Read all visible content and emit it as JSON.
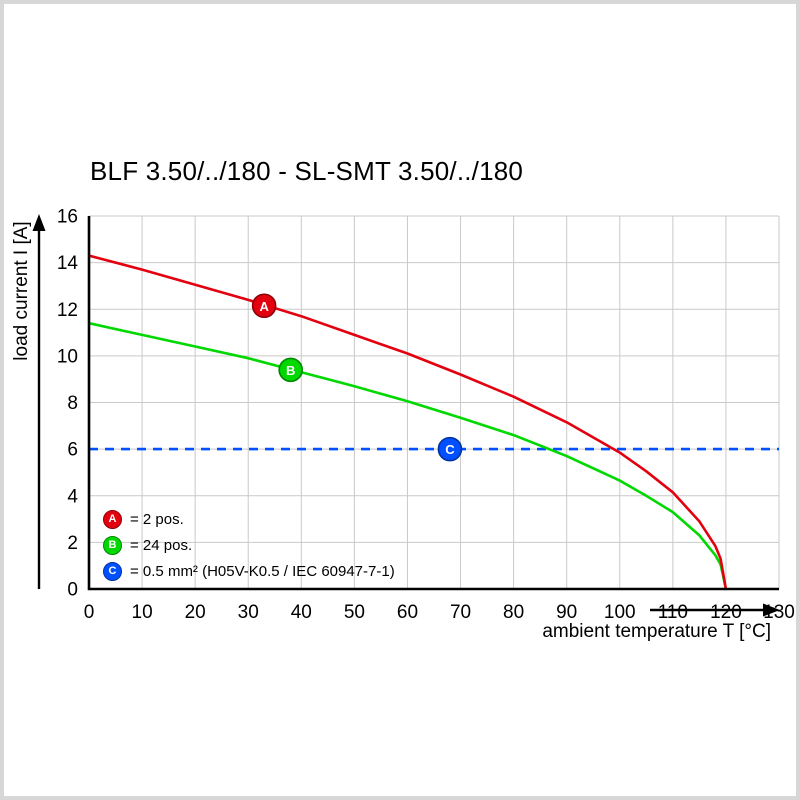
{
  "chart_data": {
    "type": "line",
    "title": "BLF 3.50/../180 - SL-SMT 3.50/../180",
    "xlabel": "ambient temperature T [°C]",
    "ylabel": "load current I [A]",
    "xlim": [
      0,
      130
    ],
    "ylim": [
      0,
      16
    ],
    "x_ticks": [
      0,
      10,
      20,
      30,
      40,
      50,
      60,
      70,
      80,
      90,
      100,
      110,
      120,
      130
    ],
    "y_ticks": [
      0,
      2,
      4,
      6,
      8,
      10,
      12,
      14,
      16
    ],
    "grid": true,
    "legend_position": "bottom-left-inside",
    "series": [
      {
        "name": "A",
        "legend_label": "= 2 pos.",
        "color": "#e3000f",
        "line_style": "solid",
        "x": [
          0,
          10,
          20,
          30,
          40,
          50,
          60,
          70,
          80,
          90,
          100,
          105,
          110,
          115,
          118,
          119,
          120
        ],
        "y": [
          14.3,
          13.7,
          13.05,
          12.4,
          11.7,
          10.9,
          10.1,
          9.2,
          8.25,
          7.15,
          5.85,
          5.05,
          4.15,
          2.9,
          1.85,
          1.3,
          0
        ],
        "marker": {
          "x": 33,
          "y": 12.15,
          "label": "A"
        }
      },
      {
        "name": "B",
        "legend_label": "= 24 pos.",
        "color": "#00d800",
        "line_style": "solid",
        "x": [
          0,
          10,
          20,
          30,
          40,
          50,
          60,
          70,
          80,
          90,
          100,
          105,
          110,
          115,
          118,
          119,
          120
        ],
        "y": [
          11.4,
          10.9,
          10.4,
          9.9,
          9.3,
          8.7,
          8.05,
          7.35,
          6.6,
          5.7,
          4.65,
          4.0,
          3.3,
          2.3,
          1.45,
          1.05,
          0
        ],
        "marker": {
          "x": 38,
          "y": 9.4,
          "label": "B"
        }
      },
      {
        "name": "C",
        "legend_label": "= 0.5 mm² (H05V-K0.5 / IEC 60947-7-1)",
        "color": "#0050ff",
        "line_style": "dashed",
        "x": [
          0,
          130
        ],
        "y": [
          6,
          6
        ],
        "marker": {
          "x": 68,
          "y": 6,
          "label": "C"
        }
      }
    ]
  }
}
